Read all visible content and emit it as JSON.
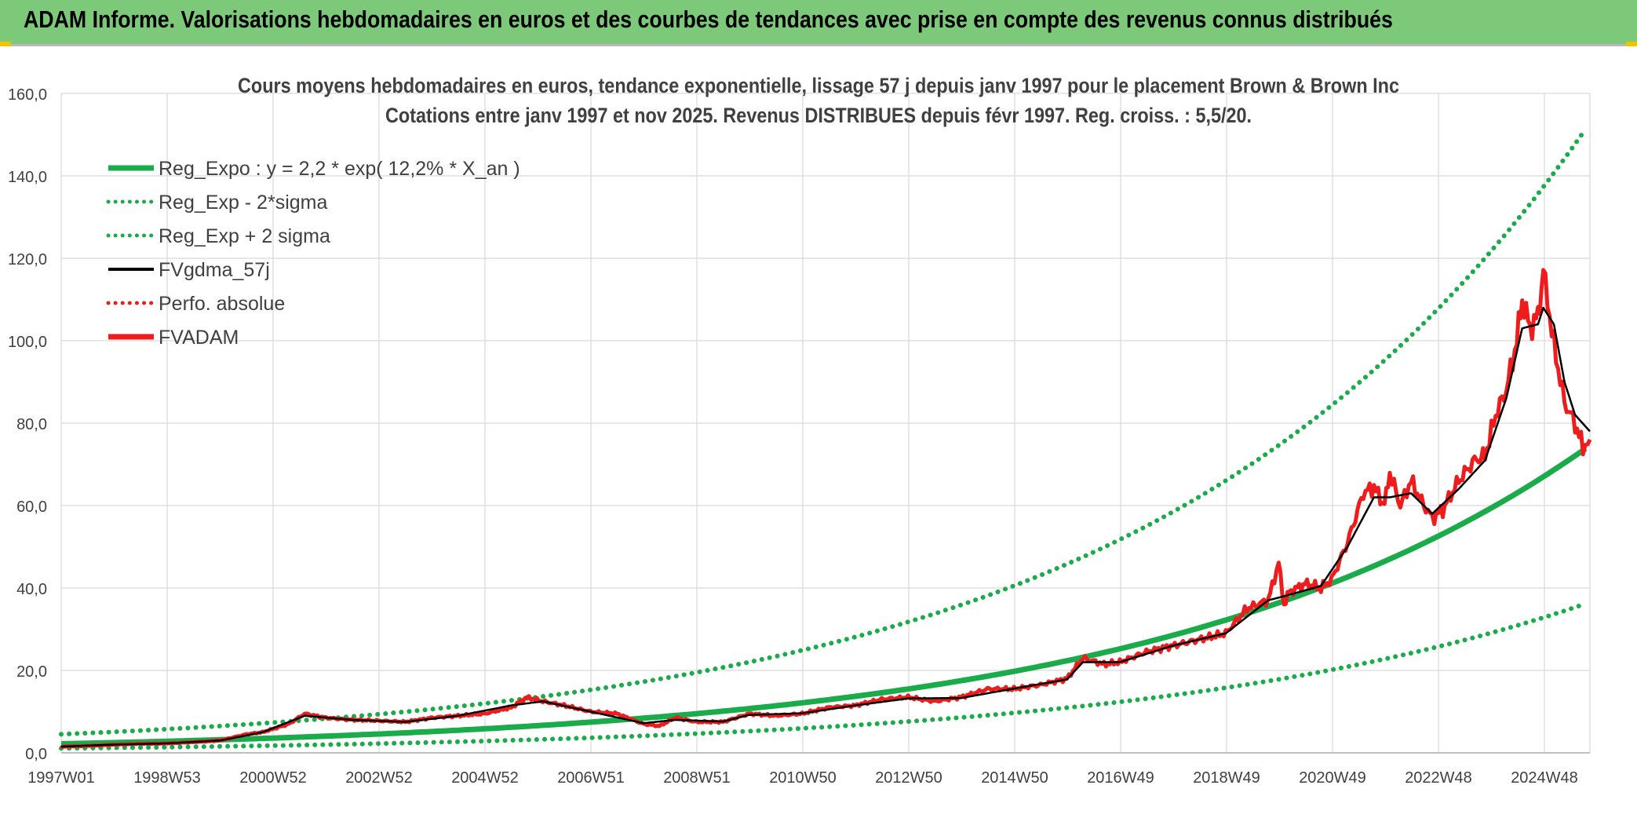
{
  "header": {
    "title": "ADAM Informe. Valorisations hebdomadaires en euros et des courbes de tendances avec prise en compte des revenus connus distribués"
  },
  "colors": {
    "banner": "#7cc97a",
    "regression": "#1aab4b",
    "moving_average": "#000000",
    "fvadam": "#ee1c1c",
    "grid": "#d9d9d9"
  },
  "chart_data": {
    "type": "line",
    "title": "Cours moyens hebdomadaires en euros, tendance exponentielle, lissage 57 j depuis janv 1997 pour le placement Brown & Brown Inc",
    "subtitle": "Cotations entre janv 1997 et nov 2025. Revenus DISTRIBUES depuis févr 1997. Reg. croiss. : 5,5/20.",
    "xlabel": "",
    "ylabel": "",
    "ylim": [
      0,
      160
    ],
    "yticks": [
      "0,0",
      "20,0",
      "40,0",
      "60,0",
      "80,0",
      "100,0",
      "120,0",
      "140,0",
      "160,0"
    ],
    "xlim": [
      1997.0,
      2025.88
    ],
    "xticks": [
      "1997W01",
      "1998W53",
      "2000W52",
      "2002W52",
      "2004W52",
      "2006W51",
      "2008W51",
      "2010W50",
      "2012W50",
      "2014W50",
      "2016W49",
      "2018W49",
      "2020W49",
      "2022W48",
      "2024W48"
    ],
    "grid": true,
    "legend_position": "top-left",
    "legend": [
      {
        "label": "Reg_Expo : y = 2,2 * exp( 12,2% *  X_an )",
        "style": "solid-thick",
        "color": "#1aab4b"
      },
      {
        "label": "Reg_Exp - 2*sigma",
        "style": "dotted",
        "color": "#1aab4b"
      },
      {
        "label": "Reg_Exp + 2 sigma",
        "style": "dotted",
        "color": "#1aab4b"
      },
      {
        "label": "FVgdma_57j",
        "style": "solid",
        "color": "#000000"
      },
      {
        "label": "Perfo. absolue",
        "style": "dotted",
        "color": "#ee1c1c"
      },
      {
        "label": "FVADAM",
        "style": "solid-thick",
        "color": "#ee1c1c"
      }
    ],
    "regression": {
      "a": 2.2,
      "rate": 0.122,
      "x0": 1997.0,
      "lower_factor": 0.49,
      "upper_factor": 2.05
    },
    "series": [
      {
        "name": "FVADAM",
        "x": [
          1997.0,
          1997.5,
          1998.0,
          1998.5,
          1999.0,
          1999.5,
          2000.0,
          2000.5,
          2000.8,
          2001.3,
          2001.6,
          2002.0,
          2002.5,
          2003.0,
          2003.5,
          2004.0,
          2004.5,
          2005.0,
          2005.5,
          2005.8,
          2006.1,
          2006.5,
          2007.0,
          2007.5,
          2008.0,
          2008.3,
          2008.6,
          2009.0,
          2009.5,
          2010.0,
          2010.5,
          2011.0,
          2011.5,
          2012.0,
          2012.5,
          2013.0,
          2013.5,
          2014.0,
          2014.5,
          2015.0,
          2015.5,
          2016.0,
          2016.3,
          2016.7,
          2017.0,
          2017.5,
          2018.0,
          2018.5,
          2019.0,
          2019.4,
          2019.8,
          2020.0,
          2020.1,
          2020.2,
          2020.5,
          2020.8,
          2021.0,
          2021.3,
          2021.6,
          2021.8,
          2022.0,
          2022.1,
          2022.3,
          2022.5,
          2022.7,
          2022.9,
          2023.1,
          2023.4,
          2023.7,
          2023.9,
          2024.1,
          2024.3,
          2024.5,
          2024.6,
          2024.75,
          2024.9,
          2025.0,
          2025.2,
          2025.4,
          2025.6,
          2025.75,
          2025.88
        ],
        "values": [
          1.5,
          1.7,
          2.0,
          2.2,
          2.3,
          2.6,
          3.0,
          4.5,
          5.0,
          7.0,
          9.5,
          8.5,
          8.0,
          7.8,
          7.5,
          8.5,
          9.0,
          9.5,
          11.0,
          13.5,
          12.5,
          11.5,
          10.0,
          9.5,
          7.0,
          6.5,
          8.5,
          7.5,
          7.5,
          9.5,
          9.0,
          9.5,
          11.0,
          11.5,
          13.0,
          13.5,
          12.5,
          13.5,
          15.5,
          15.5,
          16.5,
          18.0,
          23.0,
          21.5,
          22.0,
          24.5,
          26.0,
          27.5,
          29.0,
          35.0,
          37.0,
          46.0,
          36.0,
          39.0,
          41.0,
          40.0,
          42.0,
          51.0,
          63.0,
          64.5,
          60.0,
          68.0,
          60.0,
          66.0,
          61.0,
          57.0,
          59.0,
          66.0,
          71.0,
          72.0,
          82.0,
          88.0,
          100.0,
          110.0,
          103.0,
          106.0,
          117.0,
          99.0,
          85.0,
          80.0,
          74.0,
          76.0
        ]
      },
      {
        "name": "FVgdma_57j",
        "x": [
          1997.0,
          1998.0,
          1999.0,
          2000.0,
          2000.8,
          2001.6,
          2002.5,
          2003.5,
          2004.5,
          2005.5,
          2006.1,
          2007.0,
          2008.0,
          2008.6,
          2009.5,
          2010.0,
          2011.0,
          2012.0,
          2013.0,
          2014.0,
          2015.0,
          2016.0,
          2016.3,
          2017.0,
          2018.0,
          2019.0,
          2019.8,
          2020.1,
          2020.8,
          2021.3,
          2021.8,
          2022.1,
          2022.5,
          2022.9,
          2023.4,
          2023.9,
          2024.3,
          2024.6,
          2024.9,
          2025.0,
          2025.2,
          2025.4,
          2025.6,
          2025.88
        ],
        "values": [
          1.5,
          2.0,
          2.3,
          3.0,
          5.0,
          9.0,
          8.0,
          7.5,
          9.0,
          11.5,
          12.5,
          10.0,
          7.2,
          8.0,
          7.6,
          9.2,
          9.6,
          11.5,
          13.2,
          13.3,
          15.6,
          17.8,
          22.0,
          22.0,
          26.0,
          29.0,
          37.0,
          38.0,
          40.5,
          50.0,
          62.0,
          62.0,
          63.0,
          58.0,
          64.0,
          71.0,
          86.0,
          103.0,
          104.0,
          108.0,
          104.0,
          90.0,
          82.0,
          78.0
        ]
      }
    ]
  }
}
